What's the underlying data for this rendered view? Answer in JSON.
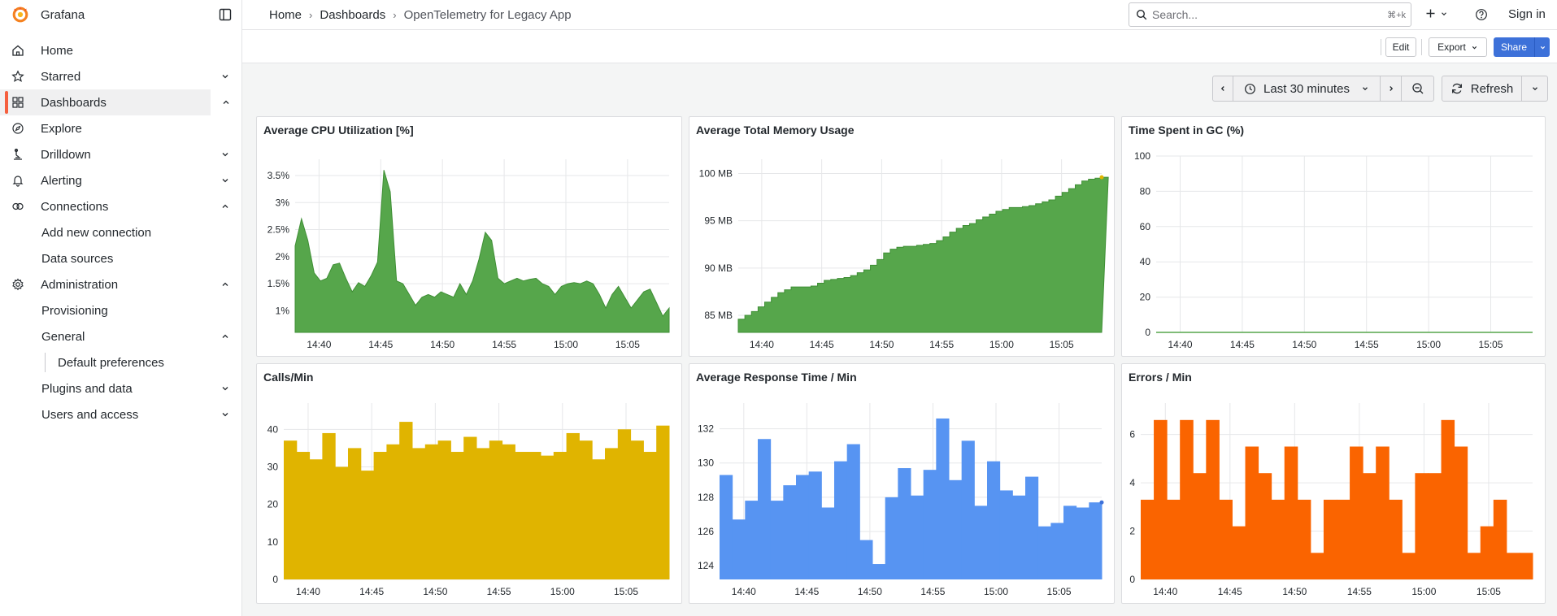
{
  "app": {
    "name": "Grafana"
  },
  "sidebar": {
    "items": [
      {
        "label": "Home",
        "icon": "home-icon",
        "chevron": ""
      },
      {
        "label": "Starred",
        "icon": "star-icon",
        "chevron": "down"
      },
      {
        "label": "Dashboards",
        "icon": "apps-icon",
        "chevron": "up",
        "active": true
      },
      {
        "label": "Explore",
        "icon": "compass-icon",
        "chevron": ""
      },
      {
        "label": "Drilldown",
        "icon": "drilldown-icon",
        "chevron": "down"
      },
      {
        "label": "Alerting",
        "icon": "bell-icon",
        "chevron": "down"
      },
      {
        "label": "Connections",
        "icon": "link-icon",
        "chevron": "up"
      },
      {
        "label": "Add new connection"
      },
      {
        "label": "Data sources"
      },
      {
        "label": "Administration",
        "icon": "cog-icon",
        "chevron": "up"
      },
      {
        "label": "Provisioning"
      },
      {
        "label": "General",
        "chevron": "up"
      },
      {
        "label": "Default preferences"
      },
      {
        "label": "Plugins and data",
        "chevron": "down"
      },
      {
        "label": "Users and access",
        "chevron": "down"
      }
    ]
  },
  "header": {
    "breadcrumbs": [
      "Home",
      "Dashboards",
      "OpenTelemetry for Legacy App"
    ],
    "search_placeholder": "Search...",
    "search_shortcut": "⌘+k",
    "sign_in": "Sign in"
  },
  "toolbar": {
    "edit": "Edit",
    "export": "Export",
    "share": "Share"
  },
  "time": {
    "range": "Last 30 minutes",
    "refresh": "Refresh"
  },
  "colors": {
    "green": "#56a64b",
    "yellow": "#e0b400",
    "blue": "#5794f2",
    "orange": "#fa6400",
    "accent": "#3d71d9",
    "brand": "#f55f3e"
  },
  "chart_data": [
    {
      "title": "Average CPU Utilization [%]",
      "type": "area",
      "color": "#56a64b",
      "x_ticks": [
        "14:40",
        "14:45",
        "14:50",
        "14:55",
        "15:00",
        "15:05"
      ],
      "y_ticks": [
        "1%",
        "1.5%",
        "2%",
        "2.5%",
        "3%",
        "3.5%"
      ],
      "ylim": [
        0.6,
        3.8
      ],
      "x": [
        "14:38",
        "14:38.5",
        "14:39",
        "14:40",
        "14:40.5",
        "14:41",
        "14:41.5",
        "14:42",
        "14:42.5",
        "14:43",
        "14:43.5",
        "14:44",
        "14:44.5",
        "14:45",
        "14:45.5",
        "14:46",
        "14:46.5",
        "14:47",
        "14:47.5",
        "14:48",
        "14:48.5",
        "14:49",
        "14:49.5",
        "14:50",
        "14:50.5",
        "14:51",
        "14:51.5",
        "14:52",
        "14:52.5",
        "14:53",
        "14:53.5",
        "14:54",
        "14:54.5",
        "14:55",
        "14:55.5",
        "14:56",
        "14:56.5",
        "14:57",
        "14:57.5",
        "14:58",
        "14:58.5",
        "14:59",
        "14:59.5",
        "15:00",
        "15:00.5",
        "15:01",
        "15:01.5",
        "15:02",
        "15:02.5",
        "15:03",
        "15:03.5",
        "15:04",
        "15:04.5",
        "15:05",
        "15:05.5",
        "15:06",
        "15:06.5",
        "15:07",
        "15:07.5",
        "15:08"
      ],
      "values": [
        2.2,
        2.7,
        2.3,
        1.7,
        1.55,
        1.6,
        1.85,
        1.88,
        1.6,
        1.35,
        1.52,
        1.45,
        1.65,
        1.9,
        3.6,
        3.2,
        1.55,
        1.5,
        1.3,
        1.1,
        1.25,
        1.3,
        1.25,
        1.35,
        1.3,
        1.25,
        1.5,
        1.3,
        1.55,
        1.95,
        2.45,
        2.3,
        1.6,
        1.5,
        1.55,
        1.6,
        1.55,
        1.58,
        1.6,
        1.5,
        1.45,
        1.3,
        1.45,
        1.5,
        1.52,
        1.5,
        1.55,
        1.5,
        1.3,
        1.05,
        1.3,
        1.45,
        1.25,
        1.05,
        1.2,
        1.35,
        1.4,
        1.15,
        0.9,
        1.05
      ]
    },
    {
      "title": "Average Total Memory Usage",
      "type": "area",
      "color": "#56a64b",
      "x_ticks": [
        "14:40",
        "14:45",
        "14:50",
        "14:55",
        "15:00",
        "15:05"
      ],
      "y_ticks": [
        "85 MB",
        "90 MB",
        "95 MB",
        "100 MB"
      ],
      "ylim": [
        83.2,
        101.5
      ],
      "values": [
        84.6,
        85.0,
        85.4,
        85.9,
        86.4,
        86.9,
        87.4,
        87.7,
        88.0,
        88.0,
        88.0,
        88.1,
        88.4,
        88.7,
        88.8,
        88.9,
        89.0,
        89.2,
        89.5,
        89.8,
        90.3,
        90.9,
        91.6,
        92.0,
        92.2,
        92.3,
        92.3,
        92.4,
        92.5,
        92.6,
        92.9,
        93.3,
        93.8,
        94.2,
        94.5,
        94.7,
        95.1,
        95.4,
        95.7,
        96.0,
        96.2,
        96.4,
        96.4,
        96.5,
        96.6,
        96.8,
        97.0,
        97.2,
        97.6,
        98.0,
        98.4,
        98.8,
        99.2,
        99.4,
        99.5,
        99.6
      ]
    },
    {
      "title": "Time Spent in GC (%)",
      "type": "line",
      "color": "#56a64b",
      "x_ticks": [
        "14:40",
        "14:45",
        "14:50",
        "14:55",
        "15:00",
        "15:05"
      ],
      "y_ticks": [
        "0",
        "20",
        "40",
        "60",
        "80",
        "100"
      ],
      "ylim": [
        0,
        100
      ],
      "values": [
        0,
        0
      ]
    },
    {
      "title": "Calls/Min",
      "type": "bar",
      "color": "#e0b400",
      "x_ticks": [
        "14:40",
        "14:45",
        "14:50",
        "14:55",
        "15:00",
        "15:05"
      ],
      "y_ticks": [
        "0",
        "10",
        "20",
        "30",
        "40"
      ],
      "ylim": [
        0,
        47
      ],
      "values": [
        37,
        34,
        32,
        39,
        30,
        35,
        29,
        34,
        36,
        42,
        35,
        36,
        37,
        34,
        38,
        35,
        37,
        36,
        34,
        34,
        33,
        34,
        39,
        37,
        32,
        35,
        40,
        37,
        34,
        41
      ]
    },
    {
      "title": "Average Response Time / Min",
      "type": "bar",
      "color": "#5794f2",
      "x_ticks": [
        "14:40",
        "14:45",
        "14:50",
        "14:55",
        "15:00",
        "15:05"
      ],
      "y_ticks": [
        "124",
        "126",
        "128",
        "130",
        "132"
      ],
      "ylim": [
        123.2,
        133.5
      ],
      "values": [
        129.3,
        126.7,
        127.8,
        131.4,
        127.8,
        128.7,
        129.3,
        129.5,
        127.4,
        130.1,
        131.1,
        125.5,
        124.1,
        128.0,
        129.7,
        128.1,
        129.6,
        132.6,
        129.0,
        131.3,
        127.5,
        130.1,
        128.4,
        128.1,
        129.2,
        126.3,
        126.5,
        127.5,
        127.4,
        127.7
      ]
    },
    {
      "title": "Errors / Min",
      "type": "bar",
      "color": "#fa6400",
      "x_ticks": [
        "14:40",
        "14:45",
        "14:50",
        "14:55",
        "15:00",
        "15:05"
      ],
      "y_ticks": [
        "0",
        "2",
        "4",
        "6"
      ],
      "ylim": [
        0,
        7.3
      ],
      "values": [
        3.3,
        6.6,
        3.3,
        6.6,
        4.4,
        6.6,
        3.3,
        2.2,
        5.5,
        4.4,
        3.3,
        5.5,
        3.3,
        1.1,
        3.3,
        3.3,
        5.5,
        4.4,
        5.5,
        3.3,
        1.1,
        4.4,
        4.4,
        6.6,
        5.5,
        1.1,
        2.2,
        3.3,
        1.1,
        1.1
      ]
    }
  ]
}
